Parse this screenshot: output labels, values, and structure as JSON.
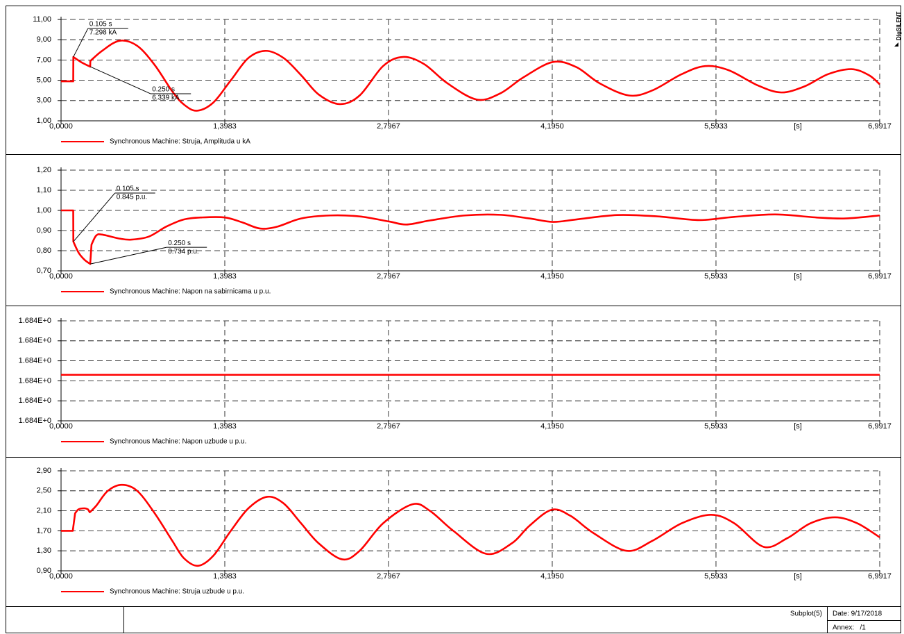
{
  "brand": "DIgSILENT",
  "footer": {
    "subplot": "Subplot(5)",
    "date": "Date: 9/17/2018",
    "annex": "Annex:   /1"
  },
  "chart_data": [
    {
      "type": "line",
      "x": [
        0,
        0.104,
        0.105,
        0.17,
        0.249,
        0.25,
        0.35,
        0.5,
        0.65,
        0.8,
        0.95,
        1.05,
        1.16,
        1.3,
        1.45,
        1.6,
        1.75,
        1.9,
        2.05,
        2.2,
        2.38,
        2.55,
        2.75,
        2.92,
        3.1,
        3.3,
        3.55,
        3.75,
        3.95,
        4.2,
        4.4,
        4.6,
        4.85,
        5.05,
        5.3,
        5.5,
        5.7,
        5.95,
        6.15,
        6.35,
        6.55,
        6.75,
        6.9,
        6.9917
      ],
      "series": [
        {
          "name": "Synchronous Machine: Struja, Amplituda u kA",
          "color": "#ff0000",
          "values": [
            4.9,
            4.9,
            7.298,
            6.8,
            6.339,
            6.9,
            7.9,
            8.9,
            8.4,
            6.5,
            3.9,
            2.6,
            2.0,
            2.8,
            5.0,
            7.2,
            7.9,
            7.2,
            5.5,
            3.6,
            2.65,
            3.5,
            6.4,
            7.3,
            6.6,
            4.7,
            3.1,
            3.7,
            5.3,
            6.8,
            6.3,
            4.7,
            3.5,
            4.0,
            5.6,
            6.4,
            6.0,
            4.5,
            3.8,
            4.4,
            5.6,
            6.1,
            5.5,
            4.6
          ]
        }
      ],
      "xlim": [
        0,
        6.9917
      ],
      "xticks": [
        {
          "value": 0,
          "label": "0,0000"
        },
        {
          "value": 1.3983,
          "label": "1,3983"
        },
        {
          "value": 2.7967,
          "label": "2,7967"
        },
        {
          "value": 4.195,
          "label": "4,1950"
        },
        {
          "value": 5.5933,
          "label": "5,5933"
        },
        {
          "value": 6.9917,
          "label": "6,9917"
        }
      ],
      "x_unit": "[s]",
      "ylim": [
        1,
        11
      ],
      "yticks": [
        {
          "value": 1,
          "label": "1,00"
        },
        {
          "value": 3,
          "label": "3,00"
        },
        {
          "value": 5,
          "label": "5,00"
        },
        {
          "value": 7,
          "label": "7,00"
        },
        {
          "value": 9,
          "label": "9,00"
        },
        {
          "value": 11,
          "label": "11,00"
        }
      ],
      "grid": true,
      "annotations": [
        {
          "x": 0.105,
          "y": 7.298,
          "x_label": "0.105 s",
          "y_label": "7.298 kA"
        },
        {
          "x": 0.25,
          "y": 6.339,
          "x_label": "0.250 s",
          "y_label": "6.339 kA"
        }
      ]
    },
    {
      "type": "line",
      "x": [
        0,
        0.104,
        0.105,
        0.15,
        0.2,
        0.249,
        0.26,
        0.3,
        0.35,
        0.5,
        0.6,
        0.75,
        0.9,
        1.05,
        1.2,
        1.4,
        1.55,
        1.7,
        1.85,
        2.05,
        2.3,
        2.55,
        2.8,
        2.95,
        3.15,
        3.45,
        3.75,
        4.0,
        4.2,
        4.4,
        4.75,
        5.1,
        5.45,
        5.75,
        6.1,
        6.45,
        6.7,
        6.9917
      ],
      "series": [
        {
          "name": "Synchronous Machine: Napon na sabirnicama u p.u.",
          "color": "#ff0000",
          "values": [
            1.0,
            1.0,
            0.845,
            0.79,
            0.755,
            0.734,
            0.83,
            0.875,
            0.88,
            0.86,
            0.855,
            0.87,
            0.92,
            0.955,
            0.965,
            0.965,
            0.94,
            0.91,
            0.92,
            0.96,
            0.975,
            0.97,
            0.945,
            0.93,
            0.95,
            0.975,
            0.978,
            0.96,
            0.943,
            0.955,
            0.977,
            0.97,
            0.952,
            0.968,
            0.98,
            0.965,
            0.96,
            0.975
          ]
        }
      ],
      "xlim": [
        0,
        6.9917
      ],
      "xticks": [
        {
          "value": 0,
          "label": "0,0000"
        },
        {
          "value": 1.3983,
          "label": "1,3983"
        },
        {
          "value": 2.7967,
          "label": "2,7967"
        },
        {
          "value": 4.195,
          "label": "4,1950"
        },
        {
          "value": 5.5933,
          "label": "5,5933"
        },
        {
          "value": 6.9917,
          "label": "6,9917"
        }
      ],
      "x_unit": "[s]",
      "ylim": [
        0.7,
        1.2
      ],
      "yticks": [
        {
          "value": 0.7,
          "label": "0,70"
        },
        {
          "value": 0.8,
          "label": "0,80"
        },
        {
          "value": 0.9,
          "label": "0,90"
        },
        {
          "value": 1.0,
          "label": "1,00"
        },
        {
          "value": 1.1,
          "label": "1,10"
        },
        {
          "value": 1.2,
          "label": "1,20"
        }
      ],
      "grid": true,
      "annotations": [
        {
          "x": 0.105,
          "y": 0.845,
          "x_label": "0.105 s",
          "y_label": "0.845 p.u."
        },
        {
          "x": 0.25,
          "y": 0.734,
          "x_label": "0.250 s",
          "y_label": "0.734 p.u."
        }
      ]
    },
    {
      "type": "line",
      "x": [
        0,
        6.9917
      ],
      "series": [
        {
          "name": "Synchronous Machine: Napon uzbude u p.u.",
          "color": "#ff0000",
          "values": [
            1.68398,
            1.68398
          ]
        }
      ],
      "xlim": [
        0,
        6.9917
      ],
      "xticks": [
        {
          "value": 0,
          "label": "0,0000"
        },
        {
          "value": 1.3983,
          "label": "1,3983"
        },
        {
          "value": 2.7967,
          "label": "2,7967"
        },
        {
          "value": 4.195,
          "label": "4,1950"
        },
        {
          "value": 5.5933,
          "label": "5,5933"
        },
        {
          "value": 6.9917,
          "label": "6,9917"
        }
      ],
      "x_unit": "[s]",
      "ylim": [
        1.68375,
        1.68425
      ],
      "yticks": [
        {
          "value": 1.68375,
          "label": "1.684E+0"
        },
        {
          "value": 1.68385,
          "label": "1.684E+0"
        },
        {
          "value": 1.68395,
          "label": "1.684E+0"
        },
        {
          "value": 1.68405,
          "label": "1.684E+0"
        },
        {
          "value": 1.68415,
          "label": "1.684E+0"
        },
        {
          "value": 1.68425,
          "label": "1.684E+0"
        }
      ],
      "grid": true
    },
    {
      "type": "line",
      "x": [
        0,
        0.1,
        0.12,
        0.15,
        0.2,
        0.23,
        0.245,
        0.3,
        0.4,
        0.52,
        0.65,
        0.8,
        0.95,
        1.05,
        1.17,
        1.3,
        1.45,
        1.6,
        1.76,
        1.9,
        2.05,
        2.2,
        2.4,
        2.55,
        2.75,
        3.0,
        3.15,
        3.35,
        3.63,
        3.85,
        4.0,
        4.19,
        4.35,
        4.55,
        4.83,
        5.05,
        5.3,
        5.55,
        5.75,
        6.0,
        6.2,
        6.4,
        6.61,
        6.8,
        6.9917
      ],
      "series": [
        {
          "name": "Synchronous Machine: Struja uzbude u p.u.",
          "color": "#ff0000",
          "values": [
            1.7,
            1.7,
            2.05,
            2.13,
            2.15,
            2.13,
            2.07,
            2.2,
            2.5,
            2.62,
            2.5,
            2.05,
            1.5,
            1.15,
            1.0,
            1.2,
            1.7,
            2.15,
            2.38,
            2.25,
            1.85,
            1.45,
            1.13,
            1.3,
            1.85,
            2.23,
            2.1,
            1.7,
            1.24,
            1.45,
            1.8,
            2.12,
            2.0,
            1.65,
            1.3,
            1.5,
            1.85,
            2.02,
            1.85,
            1.38,
            1.55,
            1.85,
            1.97,
            1.85,
            1.57
          ]
        }
      ],
      "xlim": [
        0,
        6.9917
      ],
      "xticks": [
        {
          "value": 0,
          "label": "0,0000"
        },
        {
          "value": 1.3983,
          "label": "1,3983"
        },
        {
          "value": 2.7967,
          "label": "2,7967"
        },
        {
          "value": 4.195,
          "label": "4,1950"
        },
        {
          "value": 5.5933,
          "label": "5,5933"
        },
        {
          "value": 6.9917,
          "label": "6,9917"
        }
      ],
      "x_unit": "[s]",
      "ylim": [
        0.9,
        2.9
      ],
      "yticks": [
        {
          "value": 0.9,
          "label": "0,90"
        },
        {
          "value": 1.3,
          "label": "1,30"
        },
        {
          "value": 1.7,
          "label": "1,70"
        },
        {
          "value": 2.1,
          "label": "2,10"
        },
        {
          "value": 2.5,
          "label": "2,50"
        },
        {
          "value": 2.9,
          "label": "2,90"
        }
      ],
      "grid": true
    }
  ]
}
